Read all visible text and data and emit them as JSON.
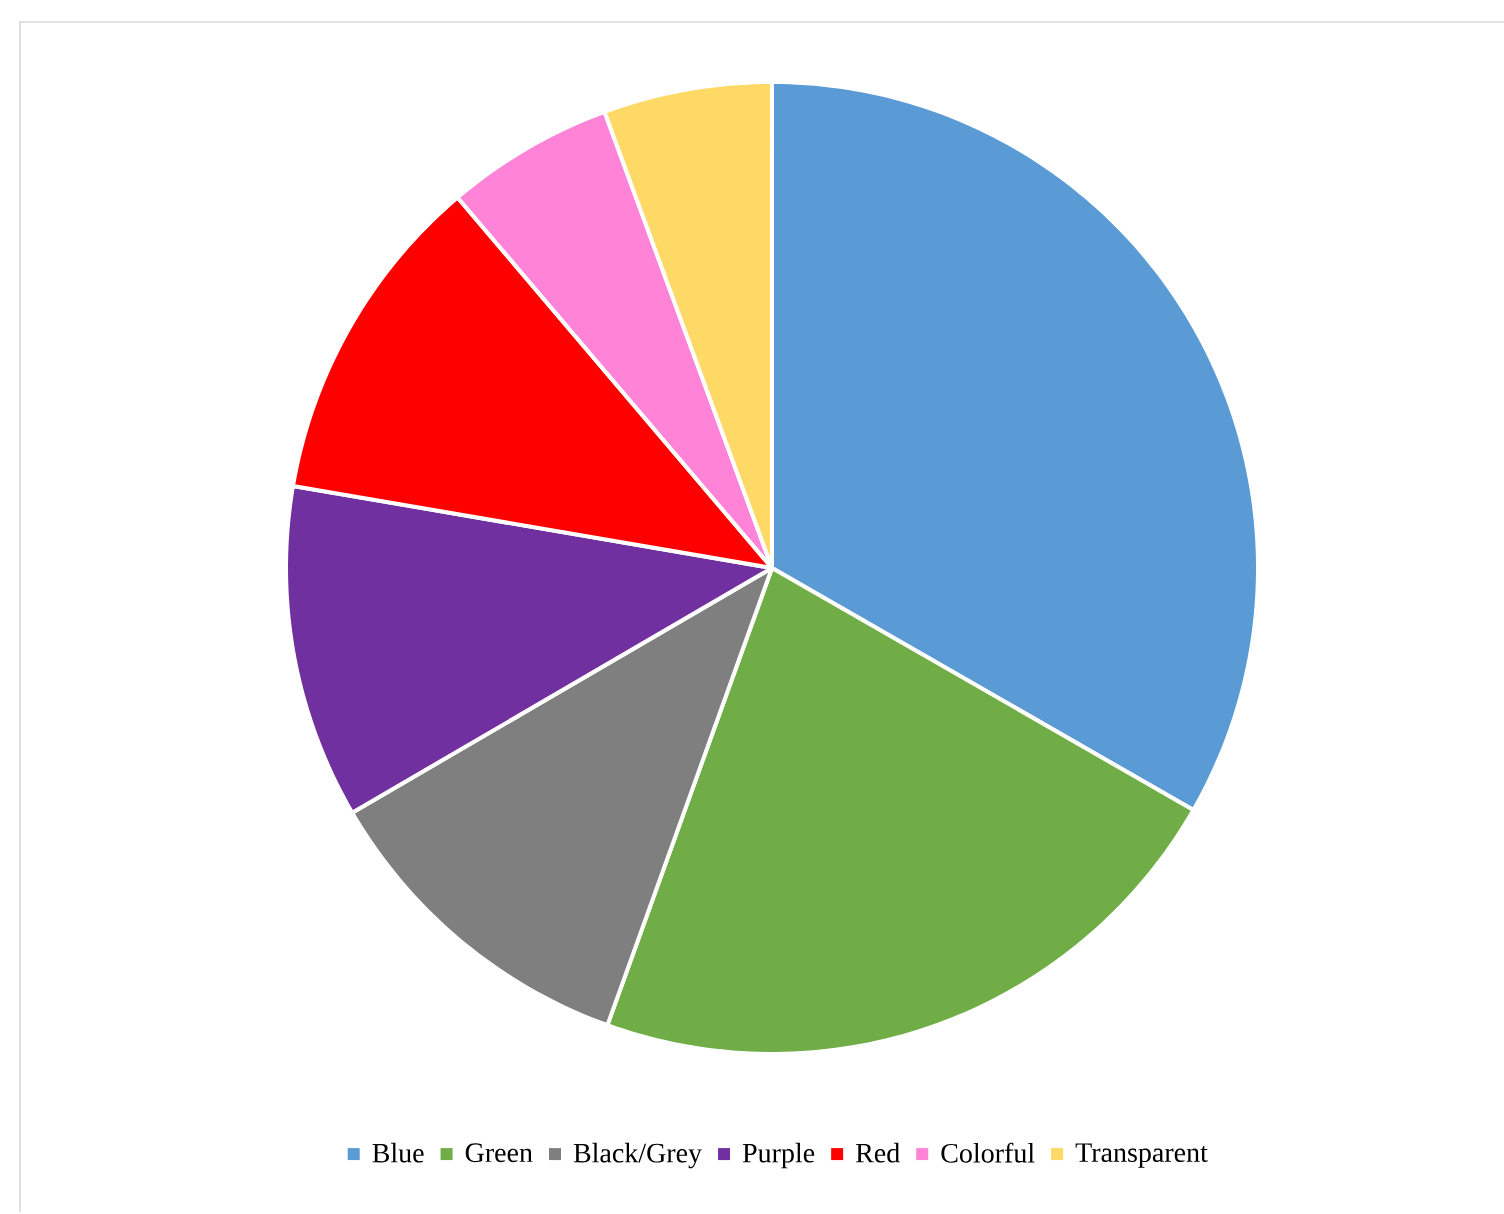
{
  "chart_data": {
    "type": "pie",
    "categories": [
      "Blue",
      "Green",
      "Black/Grey",
      "Purple",
      "Red",
      "Colorful",
      "Transparent"
    ],
    "values": [
      33.3,
      22.2,
      11.1,
      11.1,
      11.1,
      5.6,
      5.6
    ],
    "colors": [
      "#5b9bd5",
      "#70ad47",
      "#7f7f7f",
      "#7030a0",
      "#ff0000",
      "#ff84d8",
      "#ffd966"
    ],
    "legend": "bottom"
  }
}
